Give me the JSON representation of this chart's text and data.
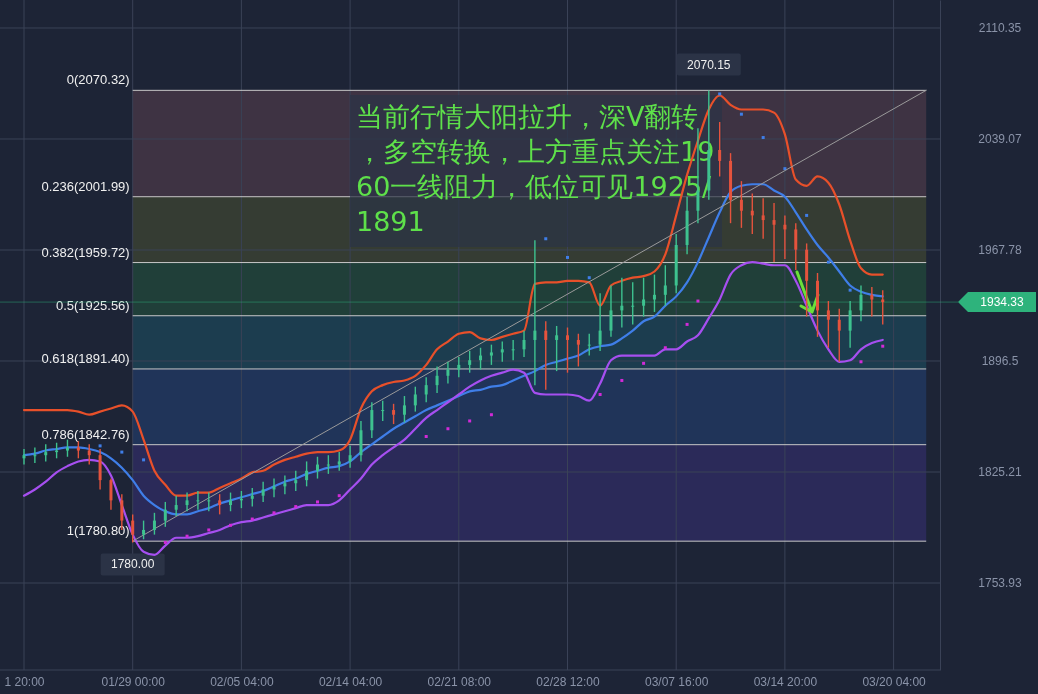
{
  "chart_data": {
    "type": "candlestick",
    "categories": [
      "1 20:00",
      null,
      null,
      null,
      null,
      null,
      null,
      null,
      null,
      null,
      "01/29 00:00",
      null,
      null,
      null,
      null,
      null,
      null,
      null,
      null,
      null,
      "02/05 04:00",
      null,
      null,
      null,
      null,
      null,
      null,
      null,
      null,
      null,
      "02/14 04:00",
      null,
      null,
      null,
      null,
      null,
      null,
      null,
      null,
      null,
      "02/21 08:00",
      null,
      null,
      null,
      null,
      null,
      null,
      null,
      null,
      null,
      "02/28 12:00",
      null,
      null,
      null,
      null,
      null,
      null,
      null,
      null,
      null,
      "03/07 16:00",
      null,
      null,
      null,
      null,
      null,
      null,
      null,
      null,
      null,
      "03/14 20:00",
      null,
      null,
      null,
      null,
      null,
      null,
      null,
      null,
      null,
      "03/20 04:00",
      null,
      null,
      null,
      null
    ],
    "ohlc": [
      [
        1834,
        1840,
        1830,
        1836
      ],
      [
        1836,
        1841,
        1831,
        1836
      ],
      [
        1836,
        1843,
        1832,
        1838
      ],
      [
        1838,
        1844,
        1834,
        1839
      ],
      [
        1839,
        1846,
        1835,
        1841
      ],
      [
        1841,
        1845,
        1834,
        1839
      ],
      [
        1839,
        1843,
        1830,
        1836
      ],
      [
        1836,
        1840,
        1814,
        1820
      ],
      [
        1820,
        1821,
        1801,
        1807
      ],
      [
        1807,
        1811,
        1788,
        1794
      ],
      [
        1794,
        1798,
        1780.0,
        1785
      ],
      [
        1785,
        1794,
        1782,
        1788
      ],
      [
        1788,
        1799,
        1785,
        1794
      ],
      [
        1794,
        1806,
        1790,
        1801
      ],
      [
        1801,
        1810,
        1797,
        1804
      ],
      [
        1804,
        1812,
        1800,
        1807
      ],
      [
        1807,
        1813,
        1801,
        1807
      ],
      [
        1807,
        1812,
        1800,
        1807
      ],
      [
        1807,
        1811,
        1798,
        1804
      ],
      [
        1804,
        1812,
        1800,
        1807
      ],
      [
        1807,
        1813,
        1802,
        1808
      ],
      [
        1808,
        1815,
        1803,
        1810
      ],
      [
        1810,
        1819,
        1806,
        1814
      ],
      [
        1814,
        1821,
        1809,
        1816
      ],
      [
        1816,
        1823,
        1811,
        1818
      ],
      [
        1818,
        1826,
        1813,
        1820
      ],
      [
        1820,
        1832,
        1816,
        1826
      ],
      [
        1826,
        1835,
        1821,
        1830
      ],
      [
        1830,
        1836,
        1824,
        1830
      ],
      [
        1830,
        1838,
        1826,
        1832
      ],
      [
        1832,
        1842,
        1828,
        1836
      ],
      [
        1836,
        1858,
        1832,
        1852
      ],
      [
        1852,
        1870,
        1847,
        1865
      ],
      [
        1865,
        1871,
        1858,
        1865
      ],
      [
        1865,
        1869,
        1856,
        1862
      ],
      [
        1862,
        1874,
        1857,
        1868
      ],
      [
        1868,
        1880,
        1864,
        1875
      ],
      [
        1875,
        1886,
        1870,
        1881
      ],
      [
        1881,
        1893,
        1876,
        1887
      ],
      [
        1887,
        1896,
        1882,
        1891
      ],
      [
        1891,
        1899,
        1886,
        1894
      ],
      [
        1894,
        1903,
        1889,
        1897
      ],
      [
        1897,
        1905,
        1891,
        1900
      ],
      [
        1900,
        1907,
        1894,
        1902
      ],
      [
        1902,
        1909,
        1896,
        1904
      ],
      [
        1904,
        1910,
        1897,
        1904
      ],
      [
        1904,
        1916,
        1899,
        1910
      ],
      [
        1910,
        1974,
        1881,
        1916
      ],
      [
        1916,
        1922,
        1878,
        1910
      ],
      [
        1910,
        1919,
        1890,
        1913
      ],
      [
        1913,
        1918,
        1889,
        1910
      ],
      [
        1910,
        1914,
        1893,
        1907
      ],
      [
        1907,
        1914,
        1900,
        1907
      ],
      [
        1907,
        1940,
        1903,
        1916
      ],
      [
        1916,
        1945,
        1912,
        1929
      ],
      [
        1929,
        1950,
        1918,
        1932
      ],
      [
        1932,
        1947,
        1920,
        1932
      ],
      [
        1932,
        1950,
        1925,
        1936
      ],
      [
        1936,
        1952,
        1928,
        1939
      ],
      [
        1939,
        1958,
        1932,
        1945
      ],
      [
        1945,
        1978,
        1940,
        1971
      ],
      [
        1971,
        2002,
        1965,
        1993
      ],
      [
        1993,
        2046,
        1985,
        2006
      ],
      [
        2006,
        2070.15,
        2000,
        2032
      ],
      [
        2032,
        2050,
        2015,
        2025
      ],
      [
        2025,
        2030,
        1985,
        2000
      ],
      [
        2000,
        2012,
        1982,
        1993
      ],
      [
        1993,
        2004,
        1978,
        1990
      ],
      [
        1990,
        2001,
        1975,
        1987
      ],
      [
        1987,
        1998,
        1960,
        1984
      ],
      [
        1984,
        1990,
        1962,
        1981
      ],
      [
        1981,
        1985,
        1955,
        1968
      ],
      [
        1968,
        1972,
        1925,
        1948
      ],
      [
        1948,
        1953,
        1912,
        1929
      ],
      [
        1929,
        1935,
        1905,
        1923
      ],
      [
        1923,
        1930,
        1896,
        1916
      ],
      [
        1916,
        1935,
        1905,
        1929
      ],
      [
        1929,
        1945,
        1922,
        1939
      ],
      [
        1939,
        1944,
        1925,
        1936
      ],
      [
        1936,
        1942,
        1920,
        1934.33
      ],
      null,
      null,
      null,
      null,
      null
    ],
    "series": [
      {
        "type": "line",
        "color": "#e8502a",
        "values": [
          1865,
          1865,
          1865,
          1865,
          1865,
          1864,
          1862,
          1864,
          1866,
          1868,
          1864,
          1846,
          1826,
          1817,
          1810,
          1810,
          1812,
          1812,
          1815,
          1818,
          1821,
          1825,
          1826,
          1830,
          1833,
          1835,
          1837,
          1838,
          1838,
          1839,
          1846,
          1866,
          1877,
          1881,
          1883,
          1884,
          1887,
          1894,
          1904,
          1909,
          1914,
          1915,
          1911,
          1910,
          1912,
          1914,
          1916,
          1946,
          1947,
          1947,
          1948,
          1948,
          1947,
          1932,
          1945,
          1948,
          1950,
          1951,
          1954,
          1965,
          1990,
          2016,
          2038,
          2058,
          2067,
          2061,
          2058,
          2058,
          2058,
          2056,
          2042,
          2013,
          2009,
          2015,
          2011,
          1997,
          1974,
          1956,
          1952,
          1952,
          null,
          null,
          null,
          null,
          null
        ]
      },
      {
        "type": "line",
        "color": "#3f7ee8",
        "values": [
          1836,
          1837,
          1839,
          1840,
          1841,
          1841,
          1840,
          1838,
          1834,
          1828,
          1820,
          1810,
          1804,
          1800,
          1798,
          1798,
          1800,
          1802,
          1805,
          1807,
          1809,
          1811,
          1813,
          1816,
          1819,
          1821,
          1824,
          1826,
          1828,
          1829,
          1832,
          1838,
          1843,
          1848,
          1853,
          1857,
          1861,
          1865,
          1868,
          1871,
          1874,
          1877,
          1878,
          1880,
          1881,
          1884,
          1887,
          1890,
          1894,
          1896,
          1898,
          1900,
          1904,
          1906,
          1907,
          1911,
          1916,
          1922,
          1925,
          1932,
          1938,
          1947,
          1960,
          1976,
          1992,
          2005,
          2009,
          2010,
          2010,
          2006,
          2002,
          1992,
          1981,
          1971,
          1963,
          1954,
          1945,
          1941,
          1939,
          1938,
          null,
          null,
          null,
          null,
          null
        ]
      },
      {
        "type": "line",
        "color": "#a64ff0",
        "values": [
          1810,
          1814,
          1819,
          1825,
          1829,
          1832,
          1833,
          1832,
          1823,
          1804,
          1785,
          1774,
          1772,
          1778,
          1783,
          1783,
          1784,
          1786,
          1788,
          1791,
          1793,
          1794,
          1796,
          1798,
          1800,
          1802,
          1804,
          1804,
          1804,
          1807,
          1814,
          1821,
          1830,
          1836,
          1841,
          1846,
          1853,
          1860,
          1865,
          1870,
          1875,
          1880,
          1884,
          1887,
          1889,
          1891,
          1889,
          1876,
          1875,
          1875,
          1875,
          1874,
          1871,
          1882,
          1897,
          1900,
          1900,
          1900,
          1900,
          1904,
          1904,
          1909,
          1913,
          1924,
          1936,
          1952,
          1958,
          1960,
          1959,
          1958,
          1958,
          1948,
          1932,
          1916,
          1904,
          1896,
          1897,
          1904,
          1908,
          1910,
          null,
          null,
          null,
          null,
          null
        ]
      },
      {
        "type": "scatter",
        "marker": "square",
        "color": "#d22ad8",
        "values": [
          null,
          null,
          null,
          null,
          null,
          null,
          null,
          null,
          null,
          null,
          null,
          null,
          null,
          1780,
          null,
          1784,
          null,
          1788,
          null,
          1791,
          null,
          1795,
          null,
          1799,
          null,
          1803,
          null,
          1806,
          null,
          1810,
          null,
          null,
          null,
          null,
          null,
          null,
          null,
          1848,
          null,
          1853,
          null,
          1858,
          null,
          1862,
          null,
          null,
          null,
          null,
          null,
          null,
          null,
          null,
          null,
          1875,
          null,
          1884,
          null,
          1895,
          null,
          1905,
          null,
          1920,
          1935,
          null,
          null,
          null,
          null,
          null,
          null,
          null,
          null,
          null,
          null,
          null,
          null,
          null,
          null,
          1896,
          null,
          1906,
          null,
          null,
          null,
          null,
          null
        ]
      },
      {
        "type": "scatter",
        "marker": "square",
        "color": "#3f7ee8",
        "values": [
          null,
          null,
          null,
          null,
          null,
          null,
          null,
          1842,
          null,
          1838,
          null,
          1833,
          null,
          null,
          null,
          null,
          null,
          null,
          null,
          null,
          null,
          null,
          null,
          null,
          null,
          null,
          null,
          null,
          null,
          null,
          null,
          null,
          null,
          null,
          null,
          null,
          null,
          null,
          null,
          null,
          null,
          null,
          null,
          null,
          null,
          null,
          null,
          null,
          1975,
          null,
          1963,
          null,
          1950,
          null,
          null,
          null,
          null,
          null,
          null,
          null,
          null,
          null,
          null,
          null,
          2068,
          null,
          2055,
          null,
          2040,
          null,
          2020,
          null,
          1990,
          null,
          1960,
          null,
          1942,
          null,
          null,
          null,
          null,
          null,
          null,
          null,
          null
        ]
      },
      {
        "type": "line",
        "color": "#9a9a9a",
        "values": [
          null,
          null,
          null,
          null,
          null,
          null,
          null,
          null,
          null,
          null,
          1780.8,
          null,
          null,
          null,
          null,
          null,
          null,
          null,
          null,
          null,
          null,
          null,
          null,
          null,
          null,
          null,
          null,
          null,
          null,
          null,
          null,
          null,
          null,
          null,
          null,
          null,
          null,
          null,
          null,
          null,
          null,
          null,
          null,
          null,
          null,
          null,
          null,
          null,
          null,
          null,
          null,
          null,
          null,
          null,
          null,
          null,
          null,
          null,
          null,
          null,
          null,
          null,
          null,
          null,
          null,
          null,
          null,
          null,
          null,
          null,
          null,
          null,
          null,
          null,
          null,
          null,
          null,
          null,
          null,
          null,
          null,
          null,
          null,
          2070.32,
          null
        ]
      }
    ],
    "ylim": [
      1698.06,
      2128.33
    ],
    "yticks": [
      1753.93,
      1825.21,
      1896.5,
      1967.78,
      2039.07,
      2110.35
    ],
    "grid": true,
    "ref_lines": [
      {
        "axis": "y",
        "value": 2070.32,
        "label": "0(2070.32)"
      },
      {
        "axis": "y",
        "value": 2001.99,
        "label": "0.236(2001.99)"
      },
      {
        "axis": "y",
        "value": 1959.72,
        "label": "0.382(1959.72)"
      },
      {
        "axis": "y",
        "value": 1925.56,
        "label": "0.5(1925.56)"
      },
      {
        "axis": "y",
        "value": 1891.4,
        "label": "0.618(1891.40)"
      },
      {
        "axis": "y",
        "value": 1842.76,
        "label": "0.786(1842.76)"
      },
      {
        "axis": "y",
        "value": 1780.8,
        "label": "1(1780.80)"
      },
      {
        "axis": "y",
        "value": 1934.33,
        "label": "1934.33",
        "color": "#2eb37c"
      }
    ],
    "bands": [
      {
        "axis": "y",
        "from": 2001.99,
        "to": 2070.32,
        "color": "#4a3848"
      },
      {
        "axis": "y",
        "from": 1959.72,
        "to": 2001.99,
        "color": "#3d4433"
      },
      {
        "axis": "y",
        "from": 1925.56,
        "to": 1959.72,
        "color": "#22483b"
      },
      {
        "axis": "y",
        "from": 1891.4,
        "to": 1925.56,
        "color": "#1c4658"
      },
      {
        "axis": "y",
        "from": 1842.76,
        "to": 1891.4,
        "color": "#213a66"
      },
      {
        "axis": "y",
        "from": 1780.8,
        "to": 1842.76,
        "color": "#302c66"
      }
    ],
    "annotations": [
      "当前行情大阳拉升，深V翻转，多空转换，上方重点关注1960一线阻力，低位可见1925/1891",
      {
        "text": "2070.15",
        "y": 2070.15
      },
      {
        "text": "1780.00",
        "y": 1780.0
      }
    ]
  }
}
